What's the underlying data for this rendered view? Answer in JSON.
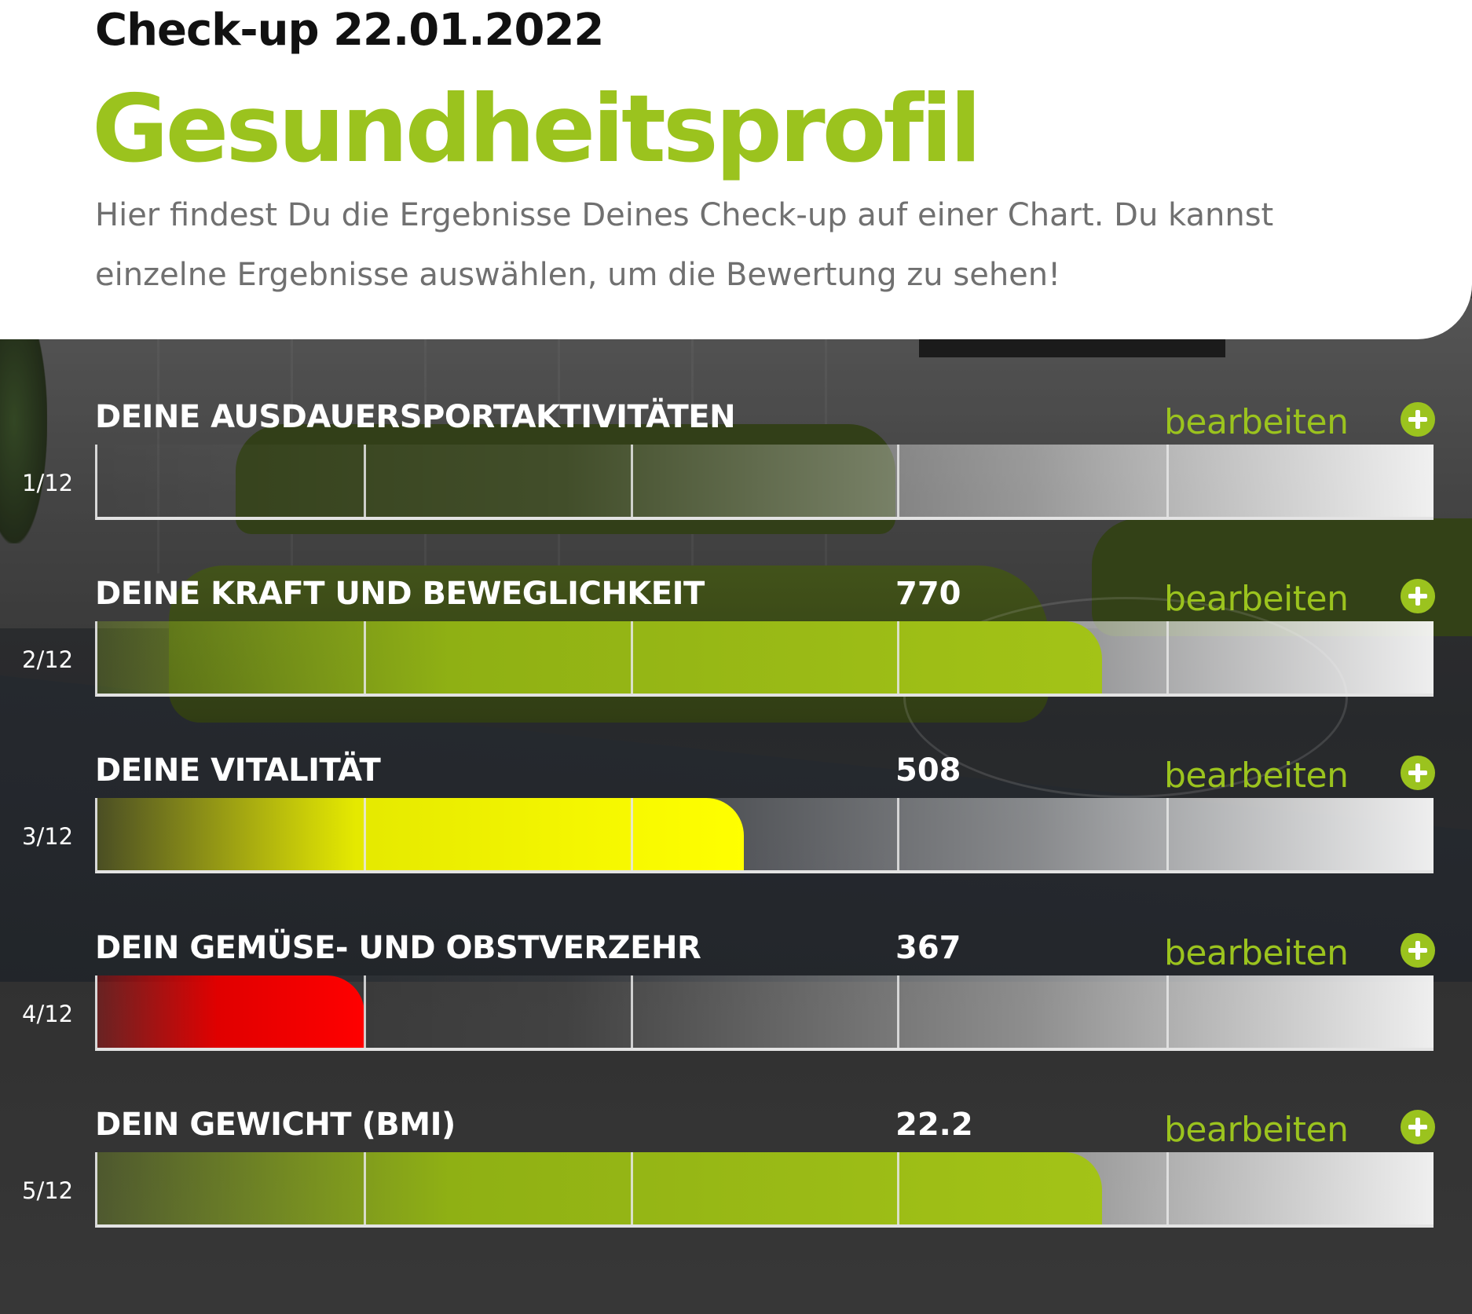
{
  "header": {
    "checkup_title": "Check-up 22.01.2022",
    "page_title": "Gesundheitsprofil",
    "intro": "Hier findest Du die Ergebnisse Deines Check-up auf einer Chart. Du kannst einzelne Ergebnisse auswählen, um die Bewertung zu sehen!"
  },
  "colors": {
    "accent": "#9bc31e",
    "good": "#9bc31e",
    "medium": "#ffff00",
    "bad": "#ff0000"
  },
  "rows": [
    {
      "label": "DEINE AUSDAUERSPORTAKTIVITÄTEN",
      "value": "",
      "index": "1/12",
      "edit": "bearbeiten",
      "fill_fraction": 0,
      "status": "none"
    },
    {
      "label": "DEINE KRAFT UND BEWEGLICHKEIT",
      "value": "770",
      "index": "2/12",
      "edit": "bearbeiten",
      "fill_fraction": 0.752,
      "status": "good"
    },
    {
      "label": "DEINE VITALITÄT",
      "value": "508",
      "index": "3/12",
      "edit": "bearbeiten",
      "fill_fraction": 0.484,
      "status": "medium"
    },
    {
      "label": "DEIN GEMÜSE- UND OBSTVERZEHR",
      "value": "367",
      "index": "4/12",
      "edit": "bearbeiten",
      "fill_fraction": 0.2,
      "status": "bad"
    },
    {
      "label": "DEIN GEWICHT (BMI)",
      "value": "22.2",
      "index": "5/12",
      "edit": "bearbeiten",
      "fill_fraction": 0.752,
      "status": "good"
    }
  ]
}
